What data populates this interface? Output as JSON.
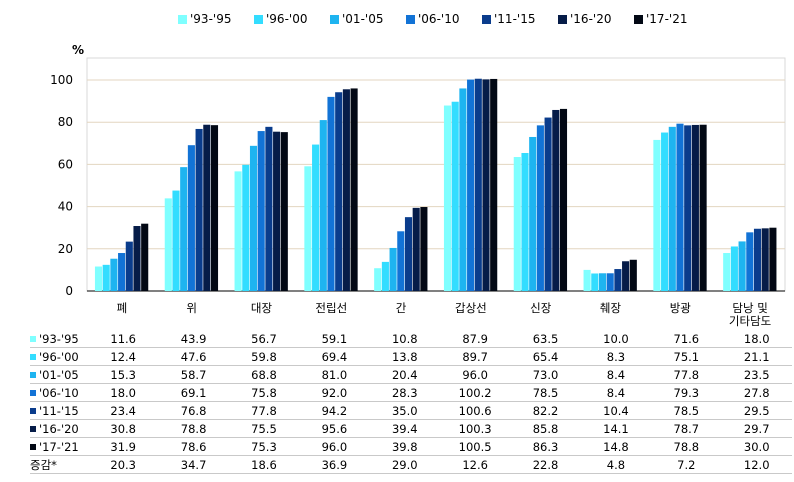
{
  "unit": "%",
  "chart_data": {
    "type": "bar",
    "categories": [
      "폐",
      "위",
      "대장",
      "전립선",
      "간",
      "갑상선",
      "신장",
      "췌장",
      "방광",
      "담낭 및\n기타담도"
    ],
    "ylim": [
      0,
      100
    ],
    "yticks": [
      0,
      20,
      40,
      60,
      80,
      100
    ],
    "grid": true,
    "legend_position": "top",
    "series": [
      {
        "name": "'93-'95",
        "color": "#7fffff",
        "values": [
          11.6,
          43.9,
          56.7,
          59.1,
          10.8,
          87.9,
          63.5,
          10.0,
          71.6,
          18.0
        ]
      },
      {
        "name": "'96-'00",
        "color": "#33ddff",
        "values": [
          12.4,
          47.6,
          59.8,
          69.4,
          13.8,
          89.7,
          65.4,
          8.3,
          75.1,
          21.1
        ]
      },
      {
        "name": "'01-'05",
        "color": "#1eb4f0",
        "values": [
          15.3,
          58.7,
          68.8,
          81.0,
          20.4,
          96.0,
          73.0,
          8.4,
          77.8,
          23.5
        ]
      },
      {
        "name": "'06-'10",
        "color": "#1273d6",
        "values": [
          18.0,
          69.1,
          75.8,
          92.0,
          28.3,
          100.2,
          78.5,
          8.4,
          79.3,
          27.8
        ]
      },
      {
        "name": "'11-'15",
        "color": "#0a3c8c",
        "values": [
          23.4,
          76.8,
          77.8,
          94.2,
          35.0,
          100.6,
          82.2,
          10.4,
          78.5,
          29.5
        ]
      },
      {
        "name": "'16-'20",
        "color": "#061c48",
        "values": [
          30.8,
          78.8,
          75.5,
          95.6,
          39.4,
          100.3,
          85.8,
          14.1,
          78.7,
          29.7
        ]
      },
      {
        "name": "'17-'21",
        "color": "#020814",
        "values": [
          31.9,
          78.6,
          75.3,
          96.0,
          39.8,
          100.5,
          86.3,
          14.8,
          78.8,
          30.0
        ]
      }
    ],
    "table": {
      "rows": [
        {
          "label": "'93-'95",
          "values": [
            "11.6",
            "43.9",
            "56.7",
            "59.1",
            "10.8",
            "87.9",
            "63.5",
            "10.0",
            "71.6",
            "18.0"
          ]
        },
        {
          "label": "'96-'00",
          "values": [
            "12.4",
            "47.6",
            "59.8",
            "69.4",
            "13.8",
            "89.7",
            "65.4",
            "8.3",
            "75.1",
            "21.1"
          ]
        },
        {
          "label": "'01-'05",
          "values": [
            "15.3",
            "58.7",
            "68.8",
            "81.0",
            "20.4",
            "96.0",
            "73.0",
            "8.4",
            "77.8",
            "23.5"
          ]
        },
        {
          "label": "'06-'10",
          "values": [
            "18.0",
            "69.1",
            "75.8",
            "92.0",
            "28.3",
            "100.2",
            "78.5",
            "8.4",
            "79.3",
            "27.8"
          ]
        },
        {
          "label": "'11-'15",
          "values": [
            "23.4",
            "76.8",
            "77.8",
            "94.2",
            "35.0",
            "100.6",
            "82.2",
            "10.4",
            "78.5",
            "29.5"
          ]
        },
        {
          "label": "'16-'20",
          "values": [
            "30.8",
            "78.8",
            "75.5",
            "95.6",
            "39.4",
            "100.3",
            "85.8",
            "14.1",
            "78.7",
            "29.7"
          ]
        },
        {
          "label": "'17-'21",
          "values": [
            "31.9",
            "78.6",
            "75.3",
            "96.0",
            "39.8",
            "100.5",
            "86.3",
            "14.8",
            "78.8",
            "30.0"
          ]
        }
      ],
      "diff_label": "증감*",
      "diff_values": [
        "20.3",
        "34.7",
        "18.6",
        "36.9",
        "29.0",
        "12.6",
        "22.8",
        "4.8",
        "7.2",
        "12.0"
      ]
    }
  }
}
